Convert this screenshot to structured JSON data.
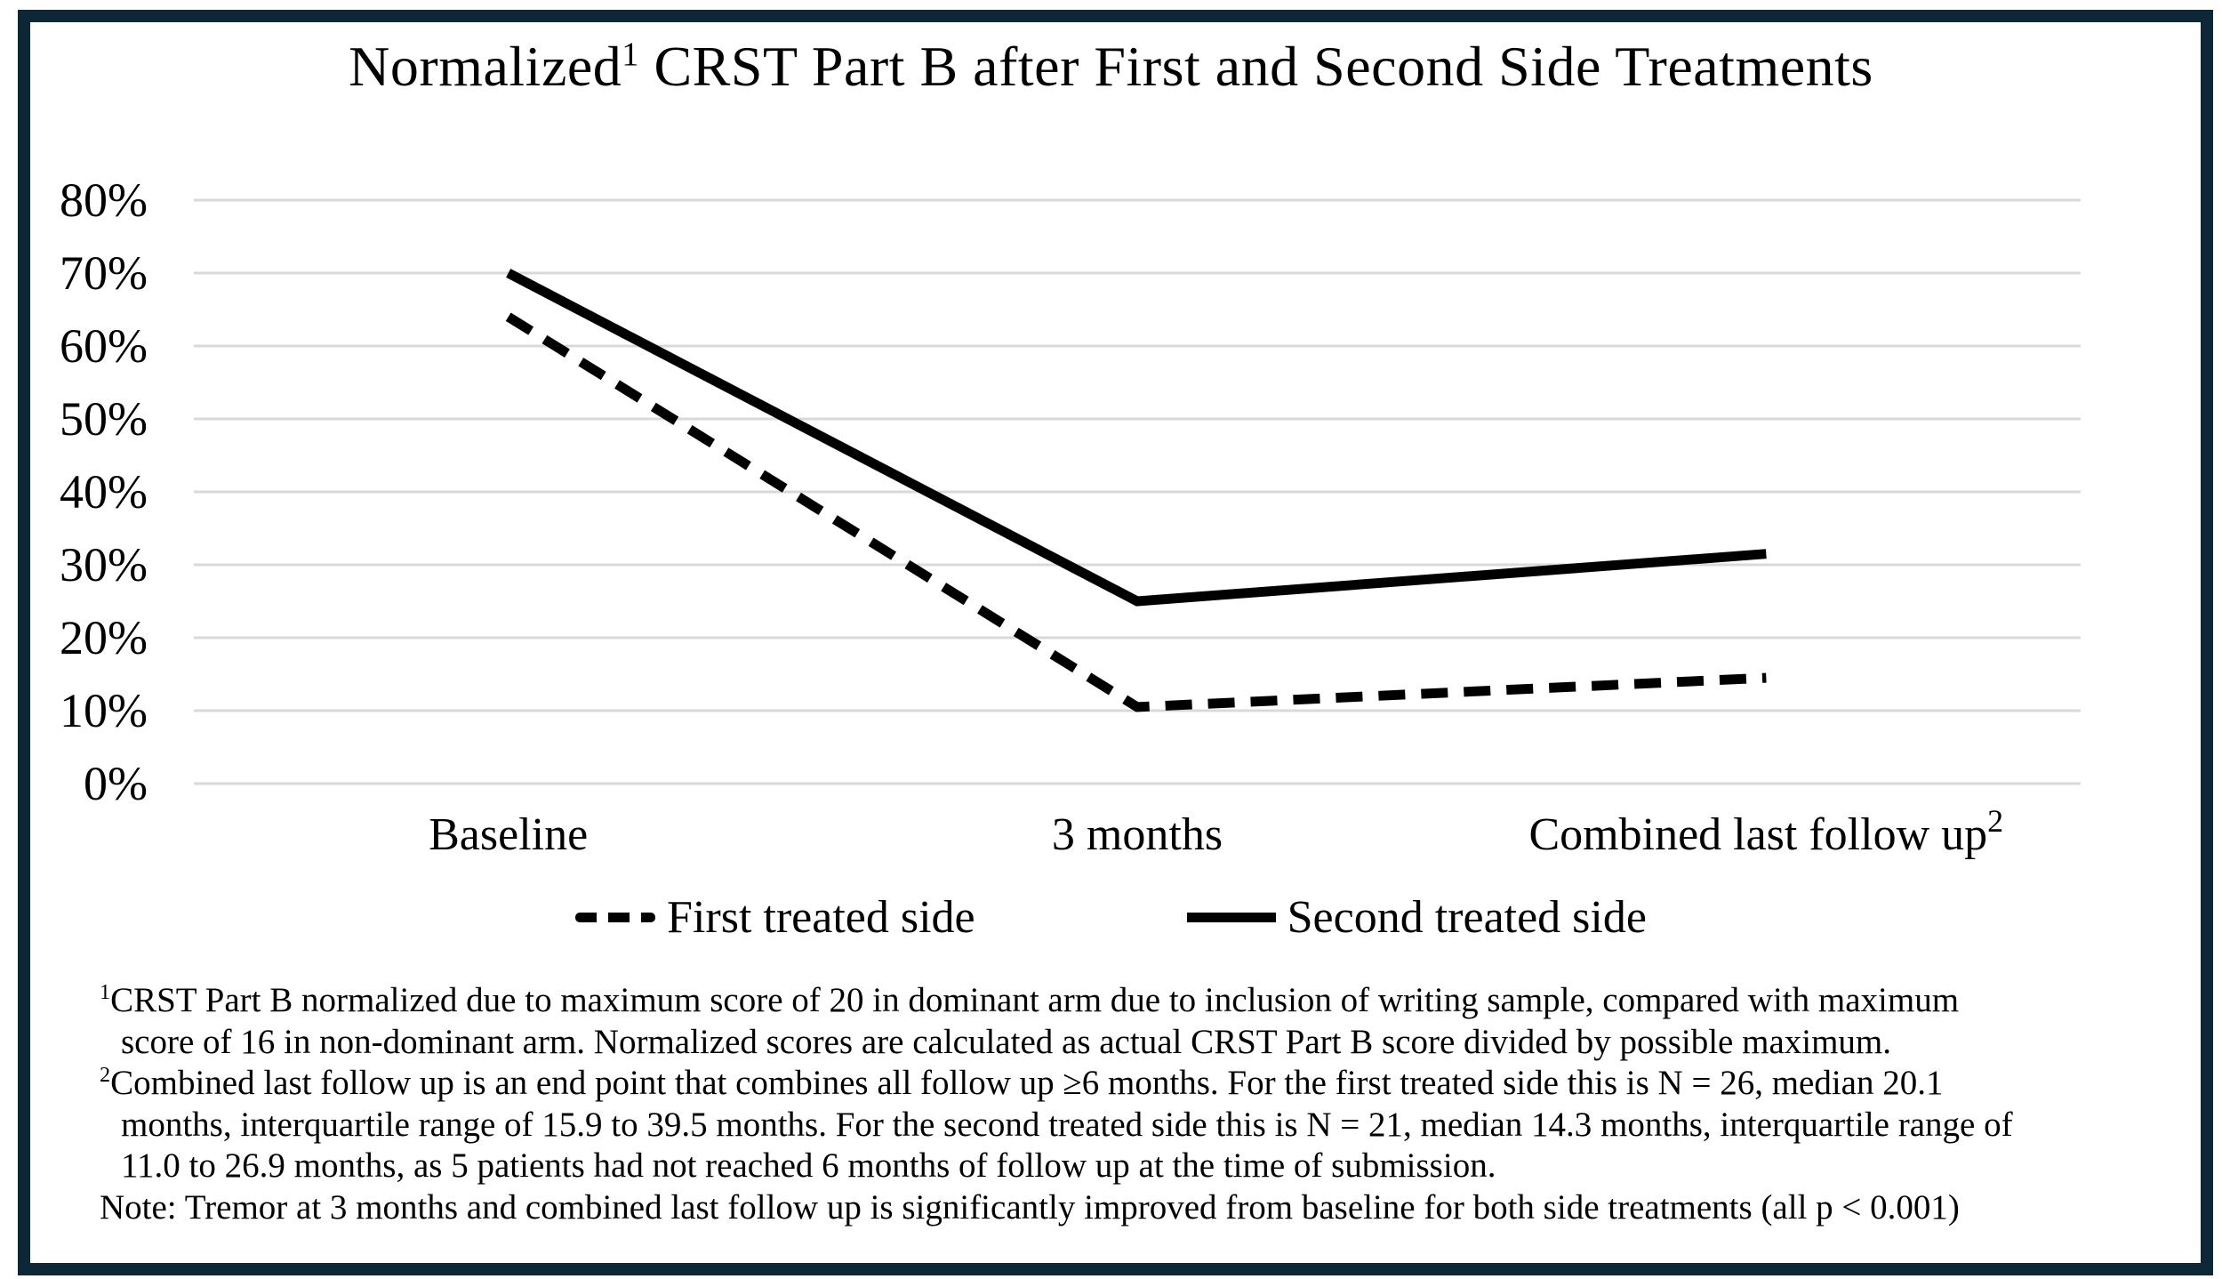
{
  "header": {
    "pre": "Normalized",
    "sup": "1",
    "post": " CRST Part B after First and Second Side Treatments"
  },
  "chart_data": {
    "type": "line",
    "title": "Normalized¹ CRST Part B after First and Second Side Treatments",
    "categories": [
      {
        "label": "Baseline",
        "sup": ""
      },
      {
        "label": "3 months",
        "sup": ""
      },
      {
        "label": "Combined last follow up",
        "sup": "2"
      }
    ],
    "yticks": [
      "0%",
      "10%",
      "20%",
      "30%",
      "40%",
      "50%",
      "60%",
      "70%",
      "80%"
    ],
    "ylim": [
      0,
      80
    ],
    "grid": "horizontal",
    "legend_position": "bottom",
    "series": [
      {
        "name": "First treated side",
        "style": "dashed",
        "values": [
          64,
          10.5,
          14.5
        ]
      },
      {
        "name": "Second treated side",
        "style": "solid",
        "values": [
          70,
          25,
          31.5
        ]
      }
    ],
    "colors": {
      "line": "#000000",
      "gridline": "#d9d9d9",
      "frame_border": "#0d2737"
    }
  },
  "footnotes": {
    "lines": [
      {
        "sup": "1",
        "text": "CRST Part B normalized due to maximum score of 20 in dominant arm due to inclusion of writing sample, compared with maximum"
      },
      {
        "sup": "",
        "text": "score of 16 in non-dominant arm. Normalized scores are calculated as actual CRST Part B score divided by possible maximum."
      },
      {
        "sup": "2",
        "text": "Combined last follow up is an end point that combines all follow up ≥6 months. For the first treated side this is N = 26, median 20.1"
      },
      {
        "sup": "",
        "text": "months, interquartile range of 15.9 to 39.5 months. For the second treated side this is N = 21, median 14.3 months, interquartile range of"
      },
      {
        "sup": "",
        "text": "11.0 to 26.9 months, as 5 patients had not reached 6 months of follow up at the time of submission."
      },
      {
        "sup": "",
        "text": "Note: Tremor at 3 months and combined last follow up is significantly improved from baseline for both side treatments (all p < 0.001)"
      }
    ]
  }
}
